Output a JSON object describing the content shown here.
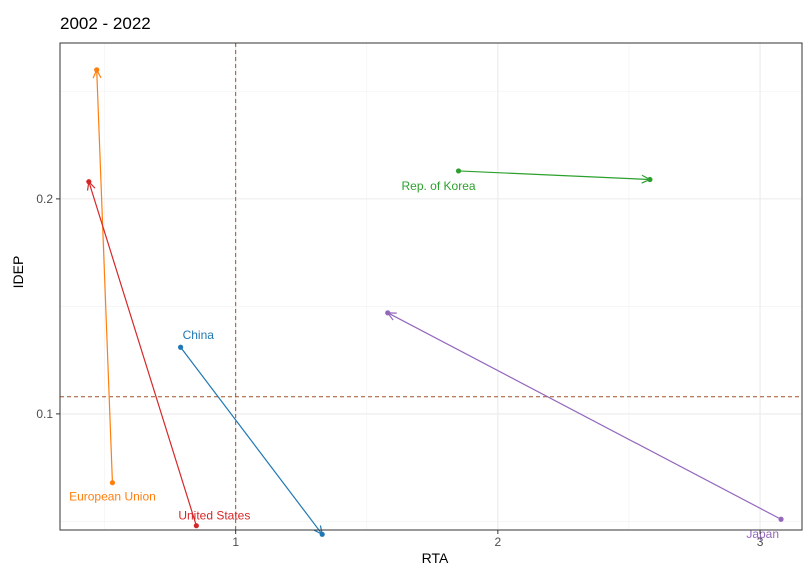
{
  "chart_data": {
    "type": "scatter",
    "title": "2002 - 2022",
    "xlabel": "RTA",
    "ylabel": "IDEP",
    "xlim": [
      0.33,
      3.16
    ],
    "ylim": [
      0.046,
      0.2725
    ],
    "xticks": [
      {
        "value": 1,
        "label": "1"
      },
      {
        "value": 2,
        "label": "2"
      },
      {
        "value": 3,
        "label": "3"
      }
    ],
    "yticks": [
      {
        "value": 0.1,
        "label": "0.1"
      },
      {
        "value": 0.2,
        "label": "0.2"
      }
    ],
    "grid": true,
    "reference_lines": {
      "x": 1.0,
      "y": 0.108,
      "color": "#a0522d"
    },
    "series": [
      {
        "name": "European Union",
        "color": "#ff7f0e",
        "start": [
          0.53,
          0.068
        ],
        "end": [
          0.47,
          0.26
        ]
      },
      {
        "name": "United States",
        "color": "#d62728",
        "start": [
          0.85,
          0.048
        ],
        "end": [
          0.44,
          0.208
        ]
      },
      {
        "name": "China",
        "color": "#1f77b4",
        "start": [
          0.79,
          0.131
        ],
        "end": [
          1.33,
          0.044
        ]
      },
      {
        "name": "Rep. of Korea",
        "color": "#2ca02c",
        "start": [
          1.85,
          0.213
        ],
        "end": [
          2.58,
          0.209
        ]
      },
      {
        "name": "Japan",
        "color": "#9467bd",
        "start": [
          3.08,
          0.051
        ],
        "end": [
          1.58,
          0.147
        ]
      }
    ]
  }
}
